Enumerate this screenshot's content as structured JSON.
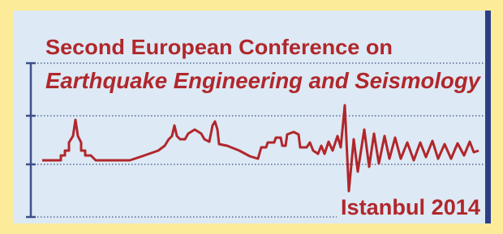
{
  "header": {
    "line1": "Second European Conference on",
    "line2": "Earthquake Engineering and Seismology",
    "location": "Istanbul 2014"
  }
}
